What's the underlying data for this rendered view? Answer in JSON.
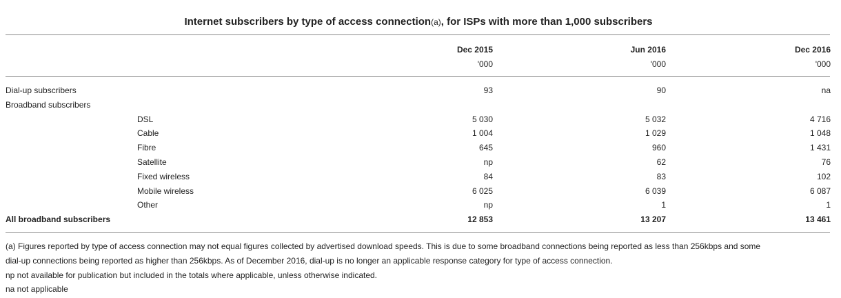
{
  "title": {
    "main": "Internet subscribers by type of access connection",
    "footnote_marker": "(a)",
    "rest": ", for ISPs with more than 1,000 subscribers"
  },
  "columns": [
    {
      "period": "Dec 2015",
      "unit": "'000"
    },
    {
      "period": "Jun 2016",
      "unit": "'000"
    },
    {
      "period": "Dec 2016",
      "unit": "'000"
    }
  ],
  "rows": [
    {
      "label": "Dial-up subscribers",
      "values": [
        "93",
        "90",
        "na"
      ]
    },
    {
      "label": "Broadband subscribers",
      "values": [
        "",
        "",
        ""
      ]
    },
    {
      "label": "DSL",
      "values": [
        "5 030",
        "5 032",
        "4 716"
      ]
    },
    {
      "label": "Cable",
      "values": [
        "1 004",
        "1 029",
        "1 048"
      ]
    },
    {
      "label": "Fibre",
      "values": [
        "645",
        "960",
        "1 431"
      ]
    },
    {
      "label": "Satellite",
      "values": [
        "np",
        "62",
        "76"
      ]
    },
    {
      "label": "Fixed wireless",
      "values": [
        "84",
        "83",
        "102"
      ]
    },
    {
      "label": "Mobile wireless",
      "values": [
        "6 025",
        "6 039",
        "6 087"
      ]
    },
    {
      "label": "Other",
      "values": [
        "np",
        "1",
        "1"
      ]
    },
    {
      "label": "All broadband subscribers",
      "values": [
        "12 853",
        "13 207",
        "13 461"
      ]
    }
  ],
  "notes": [
    "(a) Figures reported by type of access connection may not equal figures collected by advertised download speeds. This is due to some broadband connections being reported as less than 256kbps and some",
    "dial-up connections being reported as higher than 256kbps. As of December 2016, dial-up is no longer an applicable response category for type of access connection.",
    "np not available for publication but included in the totals where applicable, unless otherwise indicated.",
    "na not applicable"
  ]
}
